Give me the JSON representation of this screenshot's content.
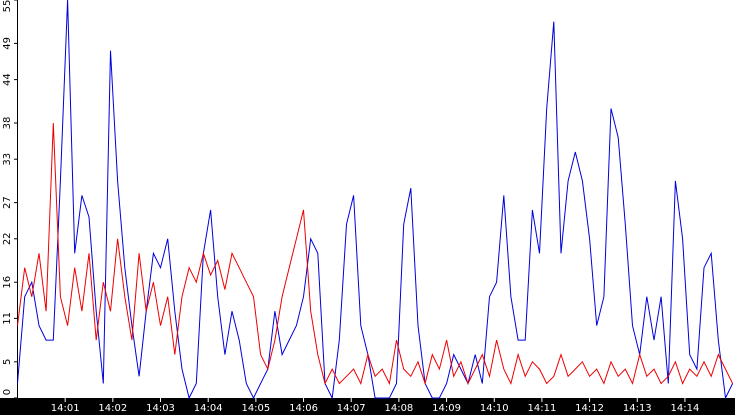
{
  "chart_data": {
    "type": "line",
    "x": [
      0,
      0.15,
      0.3,
      0.45,
      0.6,
      0.75,
      0.9,
      1.05,
      1.2,
      1.35,
      1.5,
      1.65,
      1.8,
      1.95,
      2.1,
      2.25,
      2.4,
      2.55,
      2.7,
      2.85,
      3,
      3.15,
      3.3,
      3.45,
      3.6,
      3.75,
      3.9,
      4.05,
      4.2,
      4.35,
      4.5,
      4.65,
      4.8,
      4.95,
      5.1,
      5.25,
      5.4,
      5.55,
      5.7,
      5.85,
      6,
      6.15,
      6.3,
      6.45,
      6.6,
      6.75,
      6.9,
      7.05,
      7.2,
      7.35,
      7.5,
      7.65,
      7.8,
      7.95,
      8.1,
      8.25,
      8.4,
      8.55,
      8.7,
      8.85,
      9,
      9.15,
      9.3,
      9.45,
      9.6,
      9.75,
      9.9,
      10.05,
      10.2,
      10.35,
      10.5,
      10.65,
      10.8,
      10.95,
      11.1,
      11.25,
      11.4,
      11.55,
      11.7,
      11.85,
      12,
      12.15,
      12.3,
      12.45,
      12.6,
      12.75,
      12.9,
      13.05,
      13.2,
      13.35,
      13.5,
      13.65,
      13.8,
      13.95,
      14.1,
      14.25,
      14.4,
      14.55,
      14.7,
      14.85,
      15
    ],
    "series": [
      {
        "color": "#0000dd",
        "values": [
          2,
          14,
          16,
          10,
          8,
          8,
          30,
          55,
          20,
          28,
          25,
          12,
          2,
          48,
          30,
          18,
          10,
          3,
          12,
          20,
          18,
          22,
          12,
          4,
          0,
          2,
          20,
          26,
          14,
          6,
          12,
          8,
          2,
          0,
          2,
          4,
          12,
          6,
          8,
          10,
          14,
          22,
          20,
          2,
          0,
          8,
          24,
          28,
          10,
          6,
          0,
          0,
          0,
          2,
          24,
          29,
          10,
          2,
          0,
          0,
          2,
          6,
          4,
          2,
          6,
          2,
          14,
          16,
          28,
          14,
          8,
          8,
          26,
          20,
          40,
          52,
          20,
          30,
          34,
          30,
          22,
          10,
          14,
          40,
          36,
          24,
          10,
          6,
          14,
          8,
          14,
          2,
          30,
          22,
          6,
          4,
          18,
          20,
          8,
          0,
          2
        ]
      },
      {
        "color": "#ee0000",
        "values": [
          10,
          18,
          14,
          20,
          12,
          38,
          14,
          10,
          18,
          12,
          20,
          8,
          16,
          12,
          22,
          14,
          8,
          20,
          12,
          16,
          10,
          14,
          6,
          14,
          18,
          16,
          20,
          17,
          19,
          15,
          20,
          18,
          16,
          14,
          6,
          4,
          8,
          14,
          18,
          22,
          26,
          12,
          6,
          2,
          4,
          2,
          3,
          4,
          2,
          6,
          3,
          4,
          2,
          8,
          4,
          3,
          5,
          2,
          6,
          4,
          8,
          3,
          5,
          2,
          4,
          6,
          3,
          8,
          4,
          2,
          6,
          3,
          5,
          4,
          2,
          3,
          6,
          3,
          4,
          5,
          3,
          4,
          2,
          5,
          3,
          4,
          2,
          6,
          3,
          4,
          2,
          3,
          5,
          2,
          4,
          3,
          5,
          3,
          6,
          4,
          2
        ]
      }
    ],
    "xlim": [
      0,
      15.05
    ],
    "ylim": [
      0,
      55
    ],
    "xticks": [
      {
        "value": 1,
        "label": "14:01"
      },
      {
        "value": 2,
        "label": "14:02"
      },
      {
        "value": 3,
        "label": "14:03"
      },
      {
        "value": 4,
        "label": "14:04"
      },
      {
        "value": 5,
        "label": "14:05"
      },
      {
        "value": 6,
        "label": "14:06"
      },
      {
        "value": 7,
        "label": "14:07"
      },
      {
        "value": 8,
        "label": "14:08"
      },
      {
        "value": 9,
        "label": "14:09"
      },
      {
        "value": 10,
        "label": "14:10"
      },
      {
        "value": 11,
        "label": "14:11"
      },
      {
        "value": 12,
        "label": "14:12"
      },
      {
        "value": 13,
        "label": "14:13"
      },
      {
        "value": 14,
        "label": "14:14"
      }
    ],
    "yticks": [
      0,
      5,
      11,
      16,
      22,
      27,
      33,
      38,
      44,
      49,
      55
    ]
  }
}
